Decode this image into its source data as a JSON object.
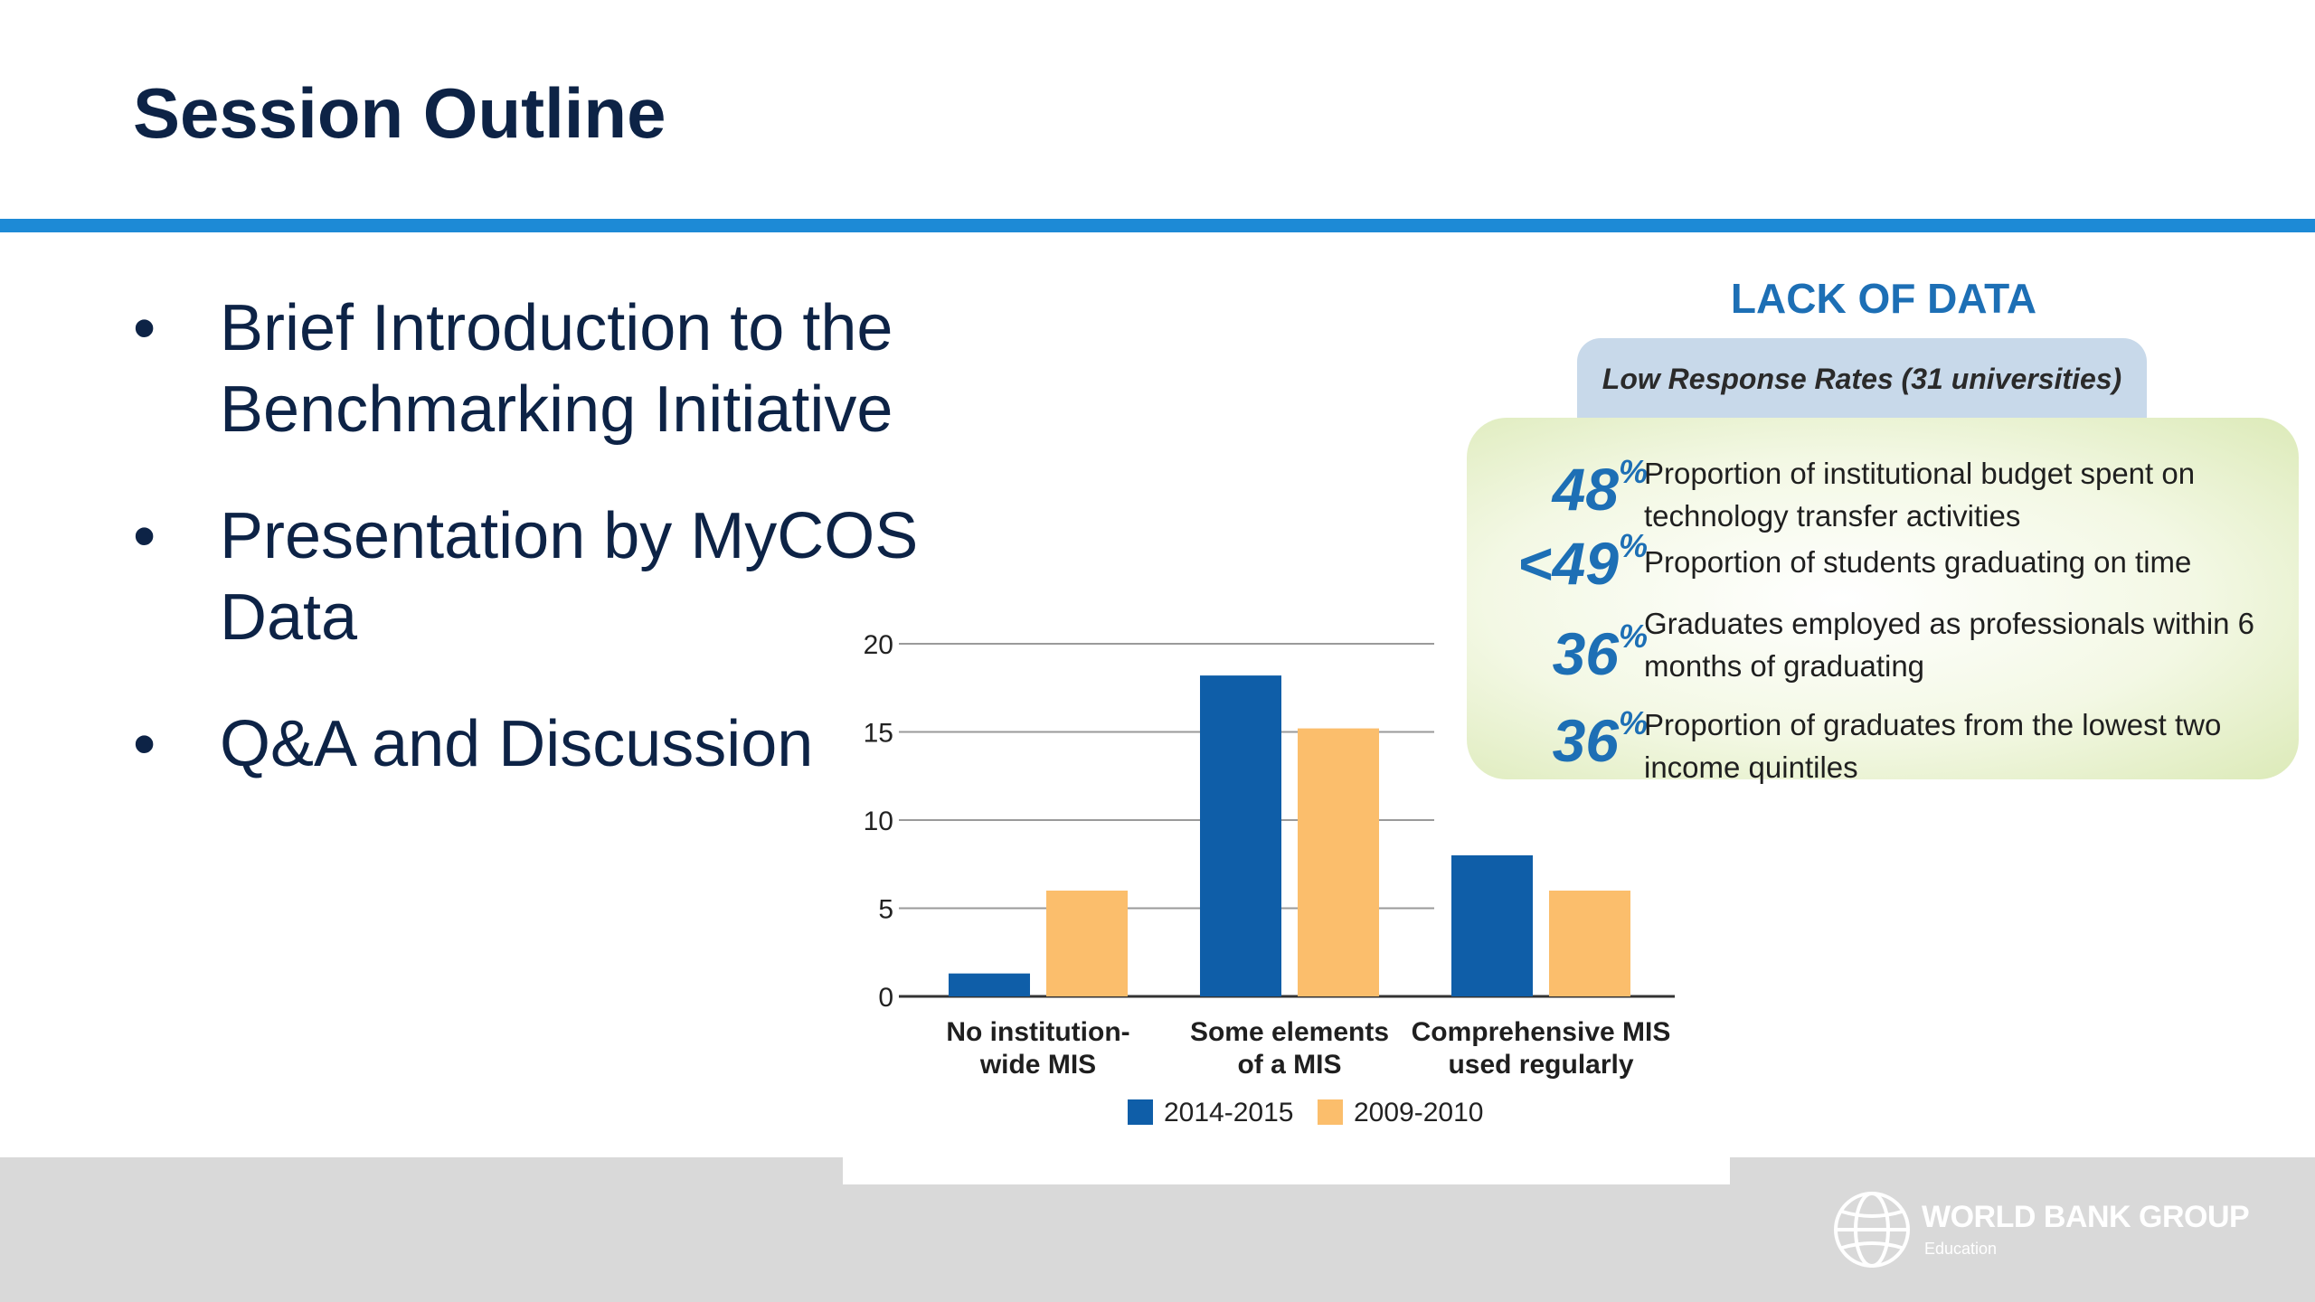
{
  "slide": {
    "title": "Session Outline",
    "bullets": [
      "Brief Introduction to the Benchmarking Initiative",
      "Presentation by MyCOS Data",
      "Q&A and Discussion"
    ],
    "bullet_symbol": "•",
    "colors": {
      "title": "#0d2346",
      "rule": "#1d8ad6",
      "footer": "#d9d9d9",
      "stat_value": "#1d6fb5"
    }
  },
  "infographic": {
    "heading": "LACK OF DATA",
    "subheading": "Low Response Rates (31 universities)",
    "stats": [
      {
        "value": "48",
        "suffix": "%",
        "label": "Proportion of institutional budget spent on technology transfer activities"
      },
      {
        "value": "<49",
        "suffix": "%",
        "label": "Proportion of students graduating on time"
      },
      {
        "value": "36",
        "suffix": "%",
        "label": "Graduates employed as professionals within 6 months of graduating"
      },
      {
        "value": "36",
        "suffix": "%",
        "label": "Proportion of graduates from the lowest two income quintiles"
      }
    ]
  },
  "logo": {
    "name": "WORLD BANK GROUP",
    "sub": "Education",
    "icon": "globe-icon"
  },
  "chart_data": {
    "type": "bar",
    "categories": [
      "No institution-wide MIS",
      "Some elements of a MIS",
      "Comprehensive MIS used regularly"
    ],
    "category_lines": [
      [
        "No institution-",
        "wide MIS"
      ],
      [
        "Some elements",
        "of a MIS"
      ],
      [
        "Comprehensive MIS",
        "used regularly"
      ]
    ],
    "series": [
      {
        "name": "2014-2015",
        "color": "#0f5ea8",
        "values": [
          1.3,
          18.2,
          8
        ]
      },
      {
        "name": "2009-2010",
        "color": "#fbbe6c",
        "values": [
          6,
          15.2,
          6
        ]
      }
    ],
    "yticks": [
      0,
      5,
      10,
      15,
      20
    ],
    "ylim": [
      0,
      20
    ],
    "grid": true,
    "legend": "bottom-center",
    "title": "",
    "xlabel": "",
    "ylabel": ""
  }
}
